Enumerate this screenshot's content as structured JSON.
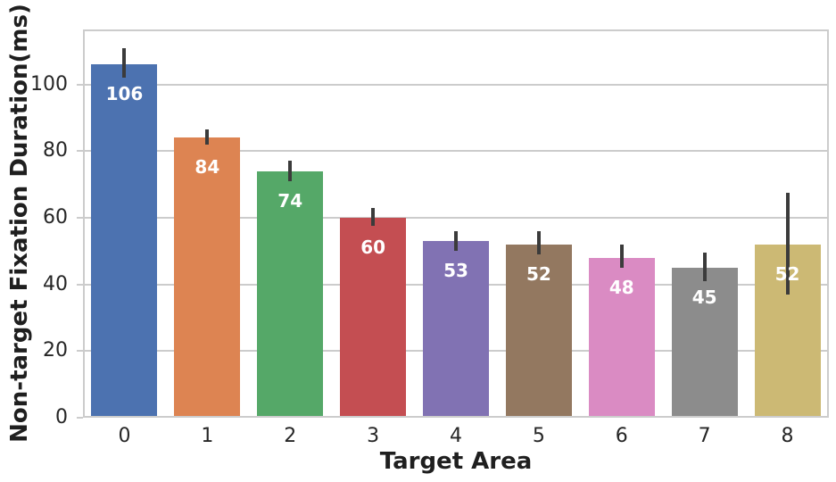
{
  "chart_data": {
    "type": "bar",
    "title": "",
    "xlabel": "Target Area",
    "ylabel": "Non-target Fixation Duration(ms)",
    "categories": [
      "0",
      "1",
      "2",
      "3",
      "4",
      "5",
      "6",
      "7",
      "8"
    ],
    "values": [
      106,
      84,
      74,
      60,
      53,
      52,
      48,
      45,
      52
    ],
    "bar_labels": [
      "106",
      "84",
      "74",
      "60",
      "53",
      "52",
      "48",
      "45",
      "52"
    ],
    "error_low": [
      102,
      82,
      71,
      57.5,
      50,
      49,
      45,
      41,
      37
    ],
    "error_high": [
      111,
      86.5,
      77,
      63,
      56,
      56,
      52,
      49.5,
      67.5
    ],
    "bar_colors": [
      "#4C72B0",
      "#DD8452",
      "#55A868",
      "#C44E52",
      "#8172B3",
      "#937860",
      "#DA8BC3",
      "#8C8C8C",
      "#CCB974"
    ],
    "yticks": [
      0,
      20,
      40,
      60,
      80,
      100
    ],
    "ylim": [
      0,
      116.5
    ],
    "grid": "horizontal",
    "legend": "none",
    "grid_color": "#cccccc",
    "spine_color": "#cccccc",
    "tick_text_color": "#262626",
    "error_bar_color": "#3b3b3b",
    "value_label_color": "#ffffff"
  }
}
